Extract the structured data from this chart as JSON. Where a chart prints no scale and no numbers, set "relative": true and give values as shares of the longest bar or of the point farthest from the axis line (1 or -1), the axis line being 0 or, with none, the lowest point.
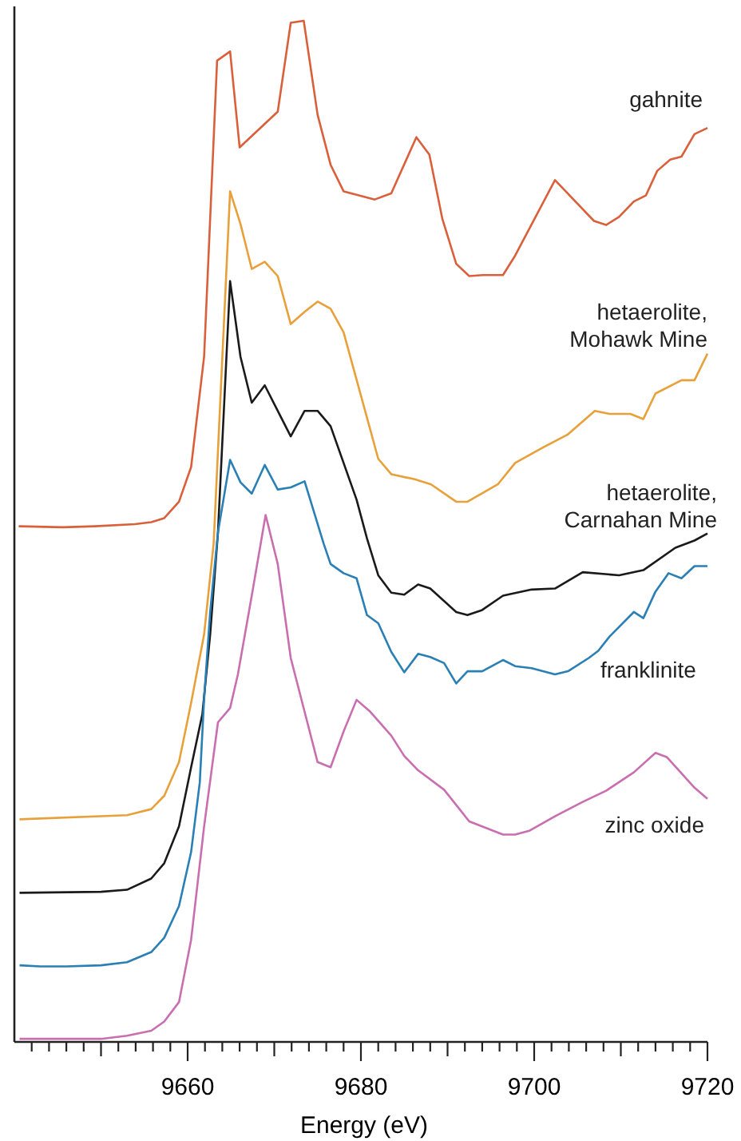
{
  "chart_data": {
    "type": "line",
    "relative": true,
    "xlabel": "Energy (eV)",
    "xlim": [
      9640,
      9720
    ],
    "xticks": [
      {
        "value": 9642,
        "label": null
      },
      {
        "value": 9644,
        "label": null
      },
      {
        "value": 9646,
        "label": null
      },
      {
        "value": 9648,
        "label": null
      },
      {
        "value": 9650,
        "label": null
      },
      {
        "value": 9652,
        "label": null
      },
      {
        "value": 9654,
        "label": null
      },
      {
        "value": 9656,
        "label": null
      },
      {
        "value": 9658,
        "label": null
      },
      9660,
      {
        "value": 9662,
        "label": null
      },
      {
        "value": 9664,
        "label": null
      },
      {
        "value": 9666,
        "label": null
      },
      {
        "value": 9668,
        "label": null
      },
      {
        "value": 9670,
        "label": null
      },
      {
        "value": 9672,
        "label": null
      },
      {
        "value": 9674,
        "label": null
      },
      {
        "value": 9676,
        "label": null
      },
      {
        "value": 9678,
        "label": null
      },
      9680,
      {
        "value": 9682,
        "label": null
      },
      {
        "value": 9684,
        "label": null
      },
      {
        "value": 9686,
        "label": null
      },
      {
        "value": 9688,
        "label": null
      },
      {
        "value": 9690,
        "label": null
      },
      {
        "value": 9692,
        "label": null
      },
      {
        "value": 9694,
        "label": null
      },
      {
        "value": 9696,
        "label": null
      },
      {
        "value": 9698,
        "label": null
      },
      9700,
      {
        "value": 9702,
        "label": null
      },
      {
        "value": 9704,
        "label": null
      },
      {
        "value": 9706,
        "label": null
      },
      {
        "value": 9708,
        "label": null
      },
      {
        "value": 9710,
        "label": null
      },
      {
        "value": 9712,
        "label": null
      },
      {
        "value": 9714,
        "label": null
      },
      {
        "value": 9716,
        "label": null
      },
      {
        "value": 9718,
        "label": null
      },
      9720
    ],
    "grid": false,
    "line_style": "solid",
    "series": [
      {
        "name": "gahnite",
        "color": "#d9603b",
        "x": [
          9640.5,
          9645.6,
          9649.3,
          9653.9,
          9655.8,
          9657.3,
          9659,
          9660.4,
          9661.9,
          9663.4,
          9664.9,
          9666,
          9670.4,
          9671.9,
          9673.4,
          9675,
          9676.5,
          9678,
          9681.6,
          9683.5,
          9686.4,
          9687.9,
          9689.4,
          9691,
          9692.5,
          9694.1,
          9696.4,
          9697.8,
          9702.4,
          9706.9,
          9708.3,
          9709.8,
          9711.5,
          9712.9,
          9714.2,
          9715.7,
          9717,
          9718.5,
          9720
        ],
        "values": [
          0.505,
          0.504,
          0.505,
          0.507,
          0.509,
          0.513,
          0.529,
          0.563,
          0.671,
          0.961,
          0.97,
          0.876,
          0.911,
          0.998,
          1.0,
          0.908,
          0.859,
          0.833,
          0.825,
          0.831,
          0.886,
          0.869,
          0.806,
          0.762,
          0.75,
          0.751,
          0.751,
          0.77,
          0.844,
          0.804,
          0.8,
          0.808,
          0.823,
          0.829,
          0.853,
          0.864,
          0.867,
          0.889,
          0.895
        ]
      },
      {
        "name": "hetaerolite, Mohawk Mine",
        "color": "#e8a03a",
        "x": [
          9640.6,
          9653,
          9655.8,
          9657.3,
          9659,
          9660.4,
          9661.9,
          9663,
          9664.9,
          9666.1,
          9667.4,
          9668.9,
          9670.4,
          9671.9,
          9673.5,
          9675,
          9676.5,
          9678,
          9682,
          9683.5,
          9686.2,
          9688.1,
          9691,
          9692.3,
          9695.8,
          9697.8,
          9701,
          9703.9,
          9707,
          9708.7,
          9711.1,
          9712.6,
          9714,
          9717,
          9718.5,
          9720
        ],
        "values": [
          0.218,
          0.222,
          0.228,
          0.241,
          0.274,
          0.332,
          0.399,
          0.488,
          0.833,
          0.801,
          0.757,
          0.764,
          0.75,
          0.703,
          0.715,
          0.725,
          0.718,
          0.695,
          0.571,
          0.556,
          0.551,
          0.546,
          0.529,
          0.529,
          0.546,
          0.567,
          0.582,
          0.595,
          0.618,
          0.615,
          0.615,
          0.61,
          0.635,
          0.648,
          0.648,
          0.674
        ]
      },
      {
        "name": "hetaerolite, Carnahan Mine",
        "color": "#1a1a1a",
        "x": [
          9640.6,
          9650,
          9653,
          9655.8,
          9657.3,
          9659,
          9660.4,
          9661.7,
          9662.6,
          9663.5,
          9664.9,
          9666.1,
          9667.4,
          9668.9,
          9671.9,
          9673.5,
          9675,
          9676.5,
          9679.5,
          9680.7,
          9682,
          9683.5,
          9685,
          9686.6,
          9688,
          9691,
          9692.3,
          9694,
          9696.4,
          9699.7,
          9702.4,
          9705.6,
          9709.8,
          9712.6,
          9716.3,
          9718.5,
          9720
        ],
        "values": [
          0.146,
          0.147,
          0.149,
          0.16,
          0.175,
          0.211,
          0.269,
          0.321,
          0.399,
          0.499,
          0.745,
          0.671,
          0.626,
          0.643,
          0.593,
          0.618,
          0.618,
          0.603,
          0.531,
          0.493,
          0.457,
          0.44,
          0.438,
          0.448,
          0.444,
          0.421,
          0.418,
          0.423,
          0.437,
          0.443,
          0.444,
          0.46,
          0.457,
          0.462,
          0.484,
          0.491,
          0.498
        ]
      },
      {
        "name": "franklinite",
        "color": "#2a7fb5",
        "x": [
          9640.6,
          9643,
          9646,
          9650,
          9653,
          9655.8,
          9657.3,
          9659,
          9660.4,
          9661.4,
          9661.9,
          9662.6,
          9663.5,
          9664.9,
          9666.1,
          9667.4,
          9668.9,
          9670.4,
          9671.9,
          9673.5,
          9675.7,
          9676.5,
          9678,
          9679.5,
          9680.7,
          9682,
          9683.5,
          9685,
          9686.6,
          9688,
          9689.6,
          9691,
          9692.3,
          9694,
          9696.4,
          9697.8,
          9699.7,
          9702.4,
          9703.9,
          9706.3,
          9707.4,
          9708.7,
          9711.5,
          9712.6,
          9714,
          9715.5,
          9717,
          9718.5,
          9720
        ],
        "values": [
          0.075,
          0.074,
          0.074,
          0.075,
          0.078,
          0.088,
          0.102,
          0.133,
          0.186,
          0.254,
          0.336,
          0.421,
          0.499,
          0.57,
          0.548,
          0.537,
          0.565,
          0.541,
          0.543,
          0.549,
          0.488,
          0.468,
          0.459,
          0.454,
          0.418,
          0.41,
          0.382,
          0.362,
          0.38,
          0.377,
          0.371,
          0.351,
          0.363,
          0.363,
          0.374,
          0.368,
          0.366,
          0.36,
          0.363,
          0.376,
          0.383,
          0.397,
          0.421,
          0.415,
          0.441,
          0.459,
          0.454,
          0.466,
          0.466
        ]
      },
      {
        "name": "zinc oxide",
        "color": "#c96fb0",
        "x": [
          9640.6,
          9650,
          9653,
          9655.8,
          9657.3,
          9659,
          9660.4,
          9661.9,
          9663.5,
          9664.9,
          9665.8,
          9667.4,
          9669,
          9670.4,
          9671.9,
          9675,
          9676.5,
          9678,
          9679.5,
          9681,
          9683.5,
          9685,
          9686.6,
          9689.6,
          9692.5,
          9696.4,
          9697.8,
          9699.5,
          9702.4,
          9705.6,
          9708.3,
          9711.5,
          9714,
          9715.3,
          9718.5,
          9720
        ],
        "values": [
          0.003,
          0.003,
          0.006,
          0.011,
          0.02,
          0.039,
          0.1,
          0.211,
          0.313,
          0.327,
          0.36,
          0.437,
          0.516,
          0.468,
          0.376,
          0.274,
          0.269,
          0.304,
          0.335,
          0.324,
          0.3,
          0.28,
          0.266,
          0.247,
          0.216,
          0.203,
          0.203,
          0.207,
          0.221,
          0.235,
          0.246,
          0.264,
          0.283,
          0.279,
          0.249,
          0.238
        ]
      }
    ]
  }
}
